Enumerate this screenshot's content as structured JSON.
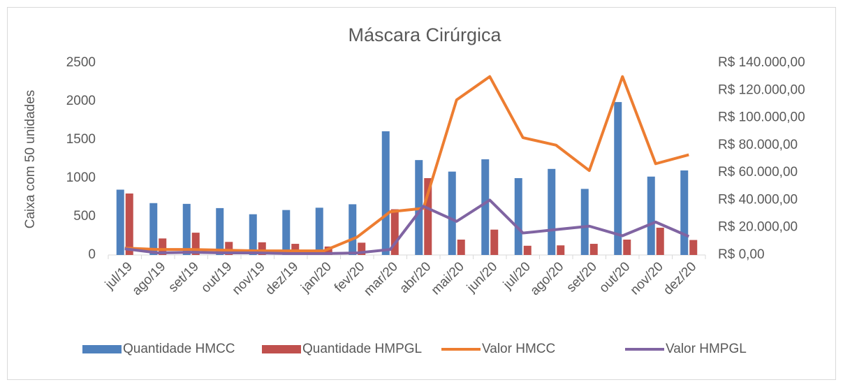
{
  "chart_data": {
    "type": "bar_line",
    "title": "Máscara Cirúrgica",
    "y_label": "Caixa com 50 unidades",
    "categories": [
      "jul/19",
      "ago/19",
      "set/19",
      "out/19",
      "nov/19",
      "dez/19",
      "jan/20",
      "fev/20",
      "mar/20",
      "abr/20",
      "mai/20",
      "jun/20",
      "jul/20",
      "ago/20",
      "set/20",
      "out/20",
      "nov/20",
      "dez/20"
    ],
    "series": [
      {
        "name": "Quantidade HMCC",
        "type": "bar",
        "color": "#4f81bd",
        "values": [
          850,
          675,
          665,
          610,
          530,
          585,
          615,
          660,
          1610,
          1235,
          1085,
          1245,
          1000,
          1120,
          860,
          1990,
          1020,
          1100
        ]
      },
      {
        "name": "Quantidade HMPGL",
        "type": "bar",
        "color": "#c0504d",
        "values": [
          800,
          215,
          290,
          170,
          165,
          145,
          110,
          160,
          595,
          1000,
          200,
          330,
          120,
          125,
          145,
          200,
          355,
          195
        ]
      },
      {
        "name": "Valor HMCC",
        "type": "line",
        "axis": "y2",
        "color": "#ed7d31",
        "values": [
          5000,
          4000,
          4000,
          3500,
          3000,
          3000,
          3000,
          13000,
          31500,
          34000,
          113000,
          130000,
          85500,
          80000,
          61500,
          130000,
          66500,
          73000
        ]
      },
      {
        "name": "Valor HMPGL",
        "type": "line",
        "axis": "y2",
        "color": "#8064a2",
        "values": [
          4500,
          1500,
          2000,
          1500,
          1500,
          1000,
          1000,
          1500,
          4000,
          35500,
          24500,
          40000,
          16000,
          18500,
          21000,
          14000,
          24000,
          13500
        ]
      }
    ],
    "ylim": [
      0,
      2500
    ],
    "yticks": [
      0,
      500,
      1000,
      1500,
      2000,
      2500
    ],
    "y2lim": [
      0,
      140000
    ],
    "y2ticks": [
      {
        "value": 0,
        "label": "R$ 0,00"
      },
      {
        "value": 20000,
        "label": "R$ 20.000,00"
      },
      {
        "value": 40000,
        "label": "R$ 40.000,00"
      },
      {
        "value": 60000,
        "label": "R$ 60.000,00"
      },
      {
        "value": 80000,
        "label": "R$ 80.000,00"
      },
      {
        "value": 100000,
        "label": "R$ 100.000,00"
      },
      {
        "value": 120000,
        "label": "R$ 120.000,00"
      },
      {
        "value": 140000,
        "label": "R$ 140.000,00"
      }
    ],
    "legend": "bottom"
  }
}
